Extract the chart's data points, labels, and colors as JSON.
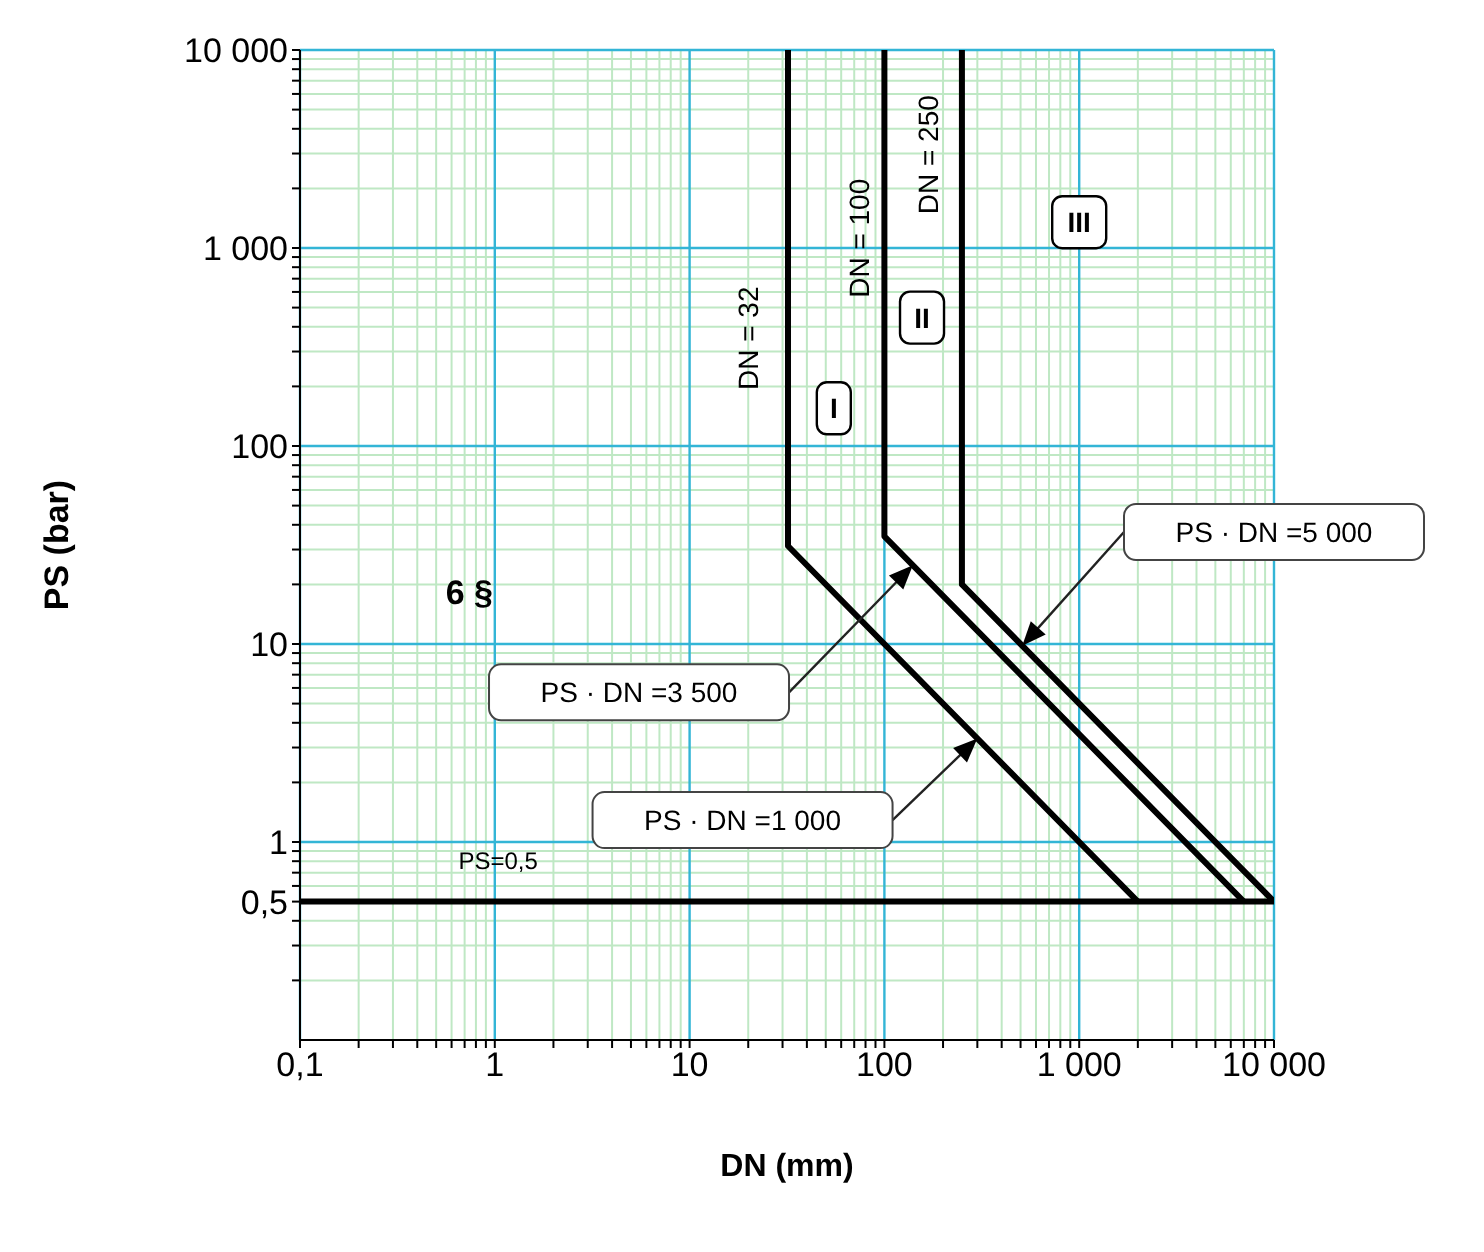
{
  "chart_data": {
    "type": "line",
    "xlabel": "DN (mm)",
    "ylabel": "PS (bar)",
    "log": "xy",
    "grid": true,
    "marker": "none",
    "xlim": [
      0.1,
      10000
    ],
    "ylim": [
      0.1,
      10000
    ],
    "xticks": [
      {
        "value": 0.1,
        "label": "0,1"
      },
      {
        "value": 0.2,
        "label": null
      },
      {
        "value": 0.3,
        "label": null
      },
      {
        "value": 0.4,
        "label": null
      },
      {
        "value": 0.5,
        "label": null
      },
      {
        "value": 0.6,
        "label": null
      },
      {
        "value": 0.7,
        "label": null
      },
      {
        "value": 0.8,
        "label": null
      },
      {
        "value": 0.9,
        "label": null
      },
      1,
      {
        "value": 2,
        "label": null
      },
      {
        "value": 3,
        "label": null
      },
      {
        "value": 4,
        "label": null
      },
      {
        "value": 5,
        "label": null
      },
      {
        "value": 6,
        "label": null
      },
      {
        "value": 7,
        "label": null
      },
      {
        "value": 8,
        "label": null
      },
      {
        "value": 9,
        "label": null
      },
      10,
      {
        "value": 20,
        "label": null
      },
      {
        "value": 30,
        "label": null
      },
      {
        "value": 40,
        "label": null
      },
      {
        "value": 50,
        "label": null
      },
      {
        "value": 60,
        "label": null
      },
      {
        "value": 70,
        "label": null
      },
      {
        "value": 80,
        "label": null
      },
      {
        "value": 90,
        "label": null
      },
      100,
      {
        "value": 200,
        "label": null
      },
      {
        "value": 300,
        "label": null
      },
      {
        "value": 400,
        "label": null
      },
      {
        "value": 500,
        "label": null
      },
      {
        "value": 600,
        "label": null
      },
      {
        "value": 700,
        "label": null
      },
      {
        "value": 800,
        "label": null
      },
      {
        "value": 900,
        "label": null
      },
      {
        "value": 1000,
        "label": "1 000"
      },
      {
        "value": 2000,
        "label": null
      },
      {
        "value": 3000,
        "label": null
      },
      {
        "value": 4000,
        "label": null
      },
      {
        "value": 5000,
        "label": null
      },
      {
        "value": 6000,
        "label": null
      },
      {
        "value": 7000,
        "label": null
      },
      {
        "value": 8000,
        "label": null
      },
      {
        "value": 9000,
        "label": null
      },
      {
        "value": 10000,
        "label": "10 000"
      }
    ],
    "yticks": [
      {
        "value": 0.2,
        "label": null
      },
      {
        "value": 0.3,
        "label": null
      },
      {
        "value": 0.4,
        "label": null
      },
      {
        "value": 0.5,
        "label": "0,5"
      },
      {
        "value": 0.6,
        "label": null
      },
      {
        "value": 0.7,
        "label": null
      },
      {
        "value": 0.8,
        "label": null
      },
      {
        "value": 0.9,
        "label": null
      },
      1,
      {
        "value": 2,
        "label": null
      },
      {
        "value": 3,
        "label": null
      },
      {
        "value": 4,
        "label": null
      },
      {
        "value": 5,
        "label": null
      },
      {
        "value": 6,
        "label": null
      },
      {
        "value": 7,
        "label": null
      },
      {
        "value": 8,
        "label": null
      },
      {
        "value": 9,
        "label": null
      },
      10,
      {
        "value": 20,
        "label": null
      },
      {
        "value": 30,
        "label": null
      },
      {
        "value": 40,
        "label": null
      },
      {
        "value": 50,
        "label": null
      },
      {
        "value": 60,
        "label": null
      },
      {
        "value": 70,
        "label": null
      },
      {
        "value": 80,
        "label": null
      },
      {
        "value": 90,
        "label": null
      },
      100,
      {
        "value": 200,
        "label": null
      },
      {
        "value": 300,
        "label": null
      },
      {
        "value": 400,
        "label": null
      },
      {
        "value": 500,
        "label": null
      },
      {
        "value": 600,
        "label": null
      },
      {
        "value": 700,
        "label": null
      },
      {
        "value": 800,
        "label": null
      },
      {
        "value": 900,
        "label": null
      },
      {
        "value": 1000,
        "label": "1 000"
      },
      {
        "value": 2000,
        "label": null
      },
      {
        "value": 3000,
        "label": null
      },
      {
        "value": 4000,
        "label": null
      },
      {
        "value": 5000,
        "label": null
      },
      {
        "value": 6000,
        "label": null
      },
      {
        "value": 7000,
        "label": null
      },
      {
        "value": 8000,
        "label": null
      },
      {
        "value": 9000,
        "label": null
      },
      {
        "value": 10000,
        "label": "10 000"
      }
    ],
    "series": [
      {
        "color": "#000000",
        "x": [
          0.1,
          10000
        ],
        "values": [
          0.5,
          0.5
        ]
      },
      {
        "color": "#000000",
        "x": [
          32,
          32,
          2000
        ],
        "values": [
          10000,
          31.25,
          0.5
        ]
      },
      {
        "color": "#000000",
        "x": [
          100,
          100,
          7000
        ],
        "values": [
          10000,
          35,
          0.5
        ]
      },
      {
        "color": "#000000",
        "x": [
          250,
          250,
          10000
        ],
        "values": [
          10000,
          20,
          0.5
        ]
      }
    ],
    "annotations": [
      "DN = 32",
      "DN = 100",
      "DN = 250",
      "I",
      "II",
      "III",
      "6 §",
      "PS=0,5",
      "PS · DN =5 000",
      "PS · DN =3 500",
      "PS · DN =1 000"
    ]
  }
}
